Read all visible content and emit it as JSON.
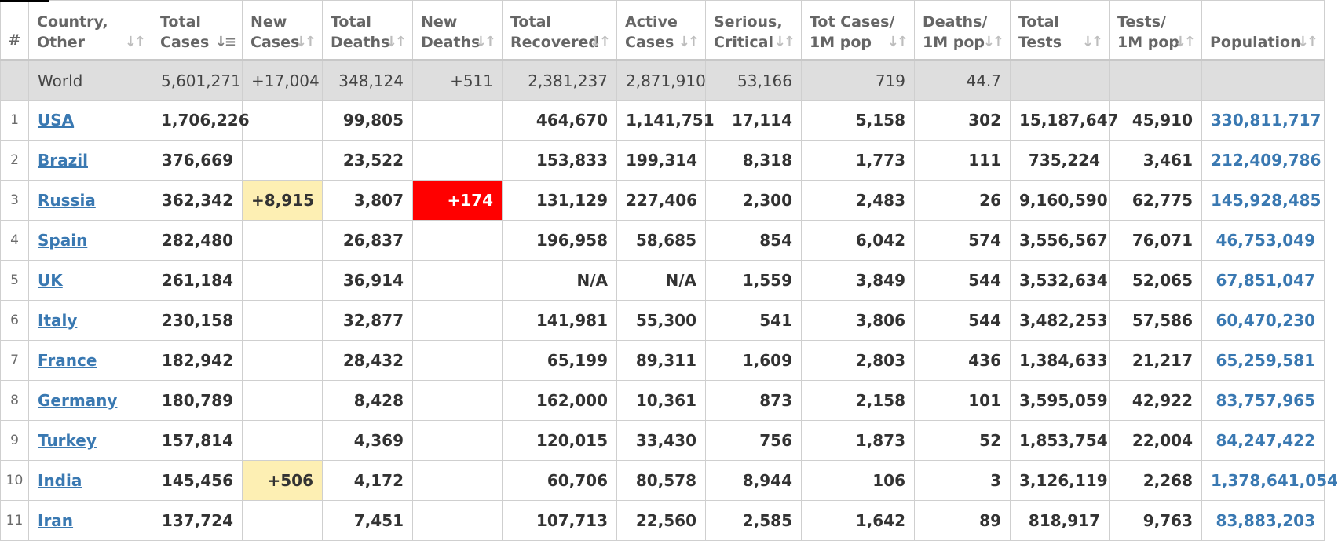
{
  "headers": {
    "hash": "#",
    "country": [
      "Country,",
      "Other"
    ],
    "total_cases": [
      "Total",
      "Cases"
    ],
    "new_cases": [
      "New",
      "Cases"
    ],
    "total_deaths": [
      "Total",
      "Deaths"
    ],
    "new_deaths": [
      "New",
      "Deaths"
    ],
    "total_recovered": [
      "Total",
      "Recovered"
    ],
    "active_cases": [
      "Active",
      "Cases"
    ],
    "serious_critical": [
      "Serious,",
      "Critical"
    ],
    "tot_cases_1m": [
      "Tot Cases/",
      "1M pop"
    ],
    "deaths_1m": [
      "Deaths/",
      "1M pop"
    ],
    "total_tests": [
      "Total",
      "Tests"
    ],
    "tests_1m": [
      "Tests/",
      "1M pop"
    ],
    "population": [
      "Population",
      ""
    ]
  },
  "world": {
    "country": "World",
    "total_cases": "5,601,271",
    "new_cases": "+17,004",
    "total_deaths": "348,124",
    "new_deaths": "+511",
    "total_recovered": "2,381,237",
    "active_cases": "2,871,910",
    "serious_critical": "53,166",
    "tot_cases_1m": "719",
    "deaths_1m": "44.7",
    "total_tests": "",
    "tests_1m": "",
    "population": ""
  },
  "rows": [
    {
      "n": "1",
      "country": "USA",
      "total_cases": "1,706,226",
      "new_cases": "",
      "total_deaths": "99,805",
      "new_deaths": "",
      "total_recovered": "464,670",
      "active_cases": "1,141,751",
      "serious_critical": "17,114",
      "tot_cases_1m": "5,158",
      "deaths_1m": "302",
      "total_tests": "15,187,647",
      "tests_1m": "45,910",
      "population": "330,811,717"
    },
    {
      "n": "2",
      "country": "Brazil",
      "total_cases": "376,669",
      "new_cases": "",
      "total_deaths": "23,522",
      "new_deaths": "",
      "total_recovered": "153,833",
      "active_cases": "199,314",
      "serious_critical": "8,318",
      "tot_cases_1m": "1,773",
      "deaths_1m": "111",
      "total_tests": "735,224",
      "tests_1m": "3,461",
      "population": "212,409,786"
    },
    {
      "n": "3",
      "country": "Russia",
      "total_cases": "362,342",
      "new_cases": "+8,915",
      "total_deaths": "3,807",
      "new_deaths": "+174",
      "total_recovered": "131,129",
      "active_cases": "227,406",
      "serious_critical": "2,300",
      "tot_cases_1m": "2,483",
      "deaths_1m": "26",
      "total_tests": "9,160,590",
      "tests_1m": "62,775",
      "population": "145,928,485"
    },
    {
      "n": "4",
      "country": "Spain",
      "total_cases": "282,480",
      "new_cases": "",
      "total_deaths": "26,837",
      "new_deaths": "",
      "total_recovered": "196,958",
      "active_cases": "58,685",
      "serious_critical": "854",
      "tot_cases_1m": "6,042",
      "deaths_1m": "574",
      "total_tests": "3,556,567",
      "tests_1m": "76,071",
      "population": "46,753,049"
    },
    {
      "n": "5",
      "country": "UK",
      "total_cases": "261,184",
      "new_cases": "",
      "total_deaths": "36,914",
      "new_deaths": "",
      "total_recovered": "N/A",
      "active_cases": "N/A",
      "serious_critical": "1,559",
      "tot_cases_1m": "3,849",
      "deaths_1m": "544",
      "total_tests": "3,532,634",
      "tests_1m": "52,065",
      "population": "67,851,047"
    },
    {
      "n": "6",
      "country": "Italy",
      "total_cases": "230,158",
      "new_cases": "",
      "total_deaths": "32,877",
      "new_deaths": "",
      "total_recovered": "141,981",
      "active_cases": "55,300",
      "serious_critical": "541",
      "tot_cases_1m": "3,806",
      "deaths_1m": "544",
      "total_tests": "3,482,253",
      "tests_1m": "57,586",
      "population": "60,470,230"
    },
    {
      "n": "7",
      "country": "France",
      "total_cases": "182,942",
      "new_cases": "",
      "total_deaths": "28,432",
      "new_deaths": "",
      "total_recovered": "65,199",
      "active_cases": "89,311",
      "serious_critical": "1,609",
      "tot_cases_1m": "2,803",
      "deaths_1m": "436",
      "total_tests": "1,384,633",
      "tests_1m": "21,217",
      "population": "65,259,581"
    },
    {
      "n": "8",
      "country": "Germany",
      "total_cases": "180,789",
      "new_cases": "",
      "total_deaths": "8,428",
      "new_deaths": "",
      "total_recovered": "162,000",
      "active_cases": "10,361",
      "serious_critical": "873",
      "tot_cases_1m": "2,158",
      "deaths_1m": "101",
      "total_tests": "3,595,059",
      "tests_1m": "42,922",
      "population": "83,757,965"
    },
    {
      "n": "9",
      "country": "Turkey",
      "total_cases": "157,814",
      "new_cases": "",
      "total_deaths": "4,369",
      "new_deaths": "",
      "total_recovered": "120,015",
      "active_cases": "33,430",
      "serious_critical": "756",
      "tot_cases_1m": "1,873",
      "deaths_1m": "52",
      "total_tests": "1,853,754",
      "tests_1m": "22,004",
      "population": "84,247,422"
    },
    {
      "n": "10",
      "country": "India",
      "total_cases": "145,456",
      "new_cases": "+506",
      "total_deaths": "4,172",
      "new_deaths": "",
      "total_recovered": "60,706",
      "active_cases": "80,578",
      "serious_critical": "8,944",
      "tot_cases_1m": "106",
      "deaths_1m": "3",
      "total_tests": "3,126,119",
      "tests_1m": "2,268",
      "population": "1,378,641,054"
    },
    {
      "n": "11",
      "country": "Iran",
      "total_cases": "137,724",
      "new_cases": "",
      "total_deaths": "7,451",
      "new_deaths": "",
      "total_recovered": "107,713",
      "active_cases": "22,560",
      "serious_critical": "2,585",
      "tot_cases_1m": "1,642",
      "deaths_1m": "89",
      "total_tests": "818,917",
      "tests_1m": "9,763",
      "population": "83,883,203"
    }
  ],
  "colors": {
    "link": "#3a79b2",
    "new_cases_highlight": "#fdefb3",
    "new_deaths_highlight": "#ff0000",
    "world_row": "#dedede"
  },
  "icons": {
    "sort": "sort-arrows-icon",
    "sorted_desc": "sort-descending-icon"
  }
}
